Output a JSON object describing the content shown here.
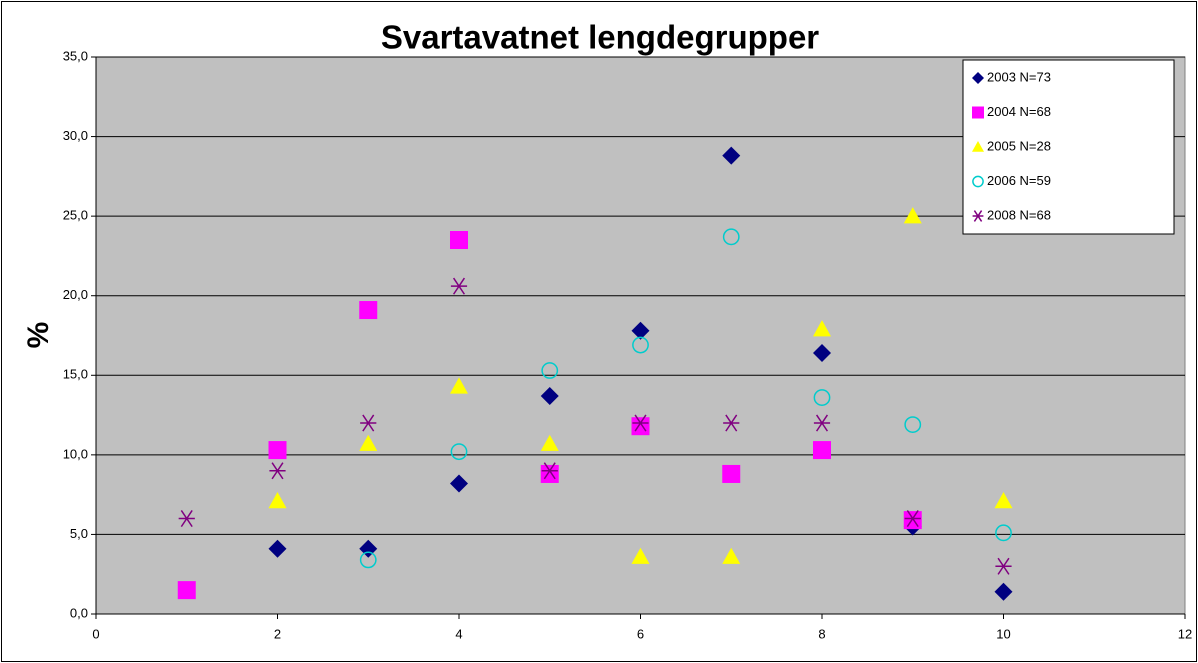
{
  "chart_data": {
    "type": "scatter",
    "title": "Svartavatnet lengdegrupper",
    "y_label": "%",
    "xlim": [
      0,
      12
    ],
    "xticks": [
      0,
      2,
      4,
      6,
      8,
      10,
      12
    ],
    "ylim": [
      0,
      35
    ],
    "yticks": [
      {
        "value": 0,
        "label": "0,0"
      },
      {
        "value": 5,
        "label": "5,0"
      },
      {
        "value": 10,
        "label": "10,0"
      },
      {
        "value": 15,
        "label": "15,0"
      },
      {
        "value": 20,
        "label": "20,0"
      },
      {
        "value": 25,
        "label": "25,0"
      },
      {
        "value": 30,
        "label": "30,0"
      },
      {
        "value": 35,
        "label": "35,0"
      }
    ],
    "grid": true,
    "legend": "top-right",
    "series": [
      {
        "name": "2003 N=73",
        "color": "#000080",
        "marker": "diamond",
        "x": [
          2,
          3,
          4,
          5,
          6,
          7,
          8,
          9,
          10
        ],
        "values": [
          4.1,
          4.1,
          8.2,
          13.7,
          17.8,
          28.8,
          16.4,
          5.5,
          1.4
        ]
      },
      {
        "name": "2004 N=68",
        "color": "#ff00ff",
        "marker": "square",
        "x": [
          1,
          2,
          3,
          4,
          5,
          6,
          7,
          8,
          9
        ],
        "values": [
          1.5,
          10.3,
          19.1,
          23.5,
          8.8,
          11.8,
          8.8,
          10.3,
          5.9
        ]
      },
      {
        "name": "2005 N=28",
        "color": "#ffff00",
        "marker": "triangle",
        "x": [
          2,
          3,
          4,
          5,
          6,
          7,
          8,
          9,
          10
        ],
        "values": [
          7.1,
          10.7,
          14.3,
          10.7,
          3.6,
          3.6,
          17.9,
          25.0,
          7.1
        ]
      },
      {
        "name": "2006 N=59",
        "color": "#00cccc",
        "marker": "circle",
        "x": [
          3,
          4,
          5,
          6,
          7,
          8,
          9,
          10
        ],
        "values": [
          3.4,
          10.2,
          15.3,
          16.9,
          23.7,
          13.6,
          11.9,
          5.1
        ]
      },
      {
        "name": "2008 N=68",
        "color": "#800080",
        "marker": "star",
        "x": [
          1,
          2,
          3,
          4,
          5,
          6,
          7,
          8,
          9,
          10
        ],
        "values": [
          6.0,
          9.0,
          12.0,
          20.6,
          9.0,
          12.0,
          12.0,
          12.0,
          6.0,
          3.0
        ]
      }
    ]
  }
}
